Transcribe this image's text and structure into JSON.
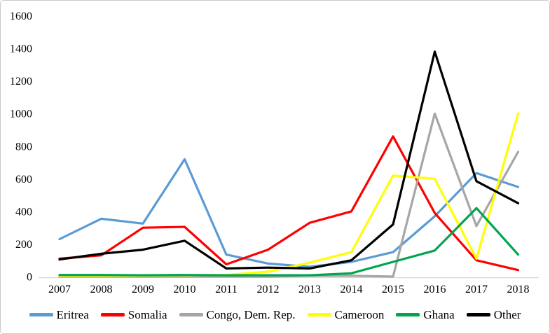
{
  "chart_data": {
    "type": "line",
    "title": "",
    "xlabel": "",
    "ylabel": "",
    "x": [
      "2007",
      "2008",
      "2009",
      "2010",
      "2011",
      "2012",
      "2013",
      "2014",
      "2015",
      "2016",
      "2017",
      "2018"
    ],
    "series": [
      {
        "name": "Eritrea",
        "color": "#5B9BD5",
        "values": [
          230,
          355,
          325,
          720,
          135,
          80,
          60,
          90,
          150,
          370,
          635,
          550
        ]
      },
      {
        "name": "Somalia",
        "color": "#FF0000",
        "values": [
          110,
          130,
          300,
          305,
          75,
          165,
          330,
          400,
          860,
          390,
          100,
          40
        ]
      },
      {
        "name": "Congo, Dem. Rep.",
        "color": "#A6A6A6",
        "values": [
          0,
          0,
          0,
          0,
          0,
          0,
          5,
          5,
          0,
          1000,
          310,
          765
        ]
      },
      {
        "name": "Cameroon",
        "color": "#FFFF00",
        "values": [
          5,
          5,
          5,
          8,
          10,
          30,
          85,
          150,
          620,
          600,
          110,
          1000
        ]
      },
      {
        "name": "Ghana",
        "color": "#00A550",
        "values": [
          10,
          10,
          8,
          10,
          8,
          8,
          8,
          20,
          90,
          160,
          420,
          135
        ]
      },
      {
        "name": "Other",
        "color": "#000000",
        "values": [
          105,
          140,
          165,
          220,
          50,
          55,
          50,
          100,
          320,
          1380,
          585,
          450
        ]
      }
    ],
    "yticks": [
      0,
      200,
      400,
      600,
      800,
      1000,
      1200,
      1400,
      1600
    ],
    "ylim": [
      0,
      1600
    ],
    "grid": false,
    "legend_position": "bottom",
    "axis_line_color": "#d6d6d6"
  }
}
